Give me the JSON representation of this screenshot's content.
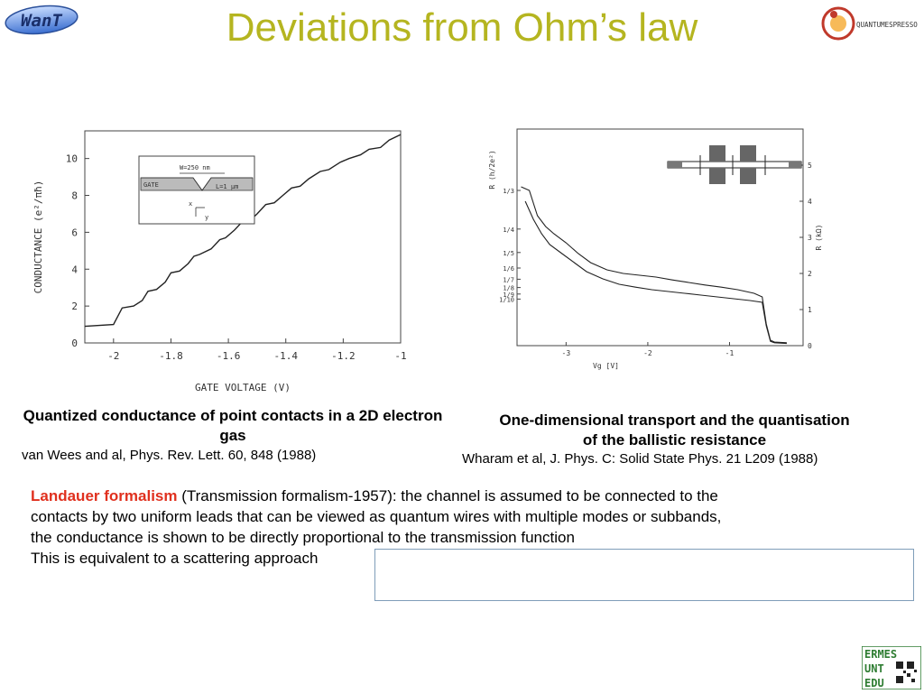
{
  "slide": {
    "title": "Deviations from Ohm’s law",
    "logo_left_text": "WanT",
    "logo_right_text": "QUANTUMESPRESSO",
    "footer_logo": {
      "line1": "ERMES",
      "line2": "UNT",
      "line3": "EDU"
    }
  },
  "left_figure": {
    "inset": {
      "w_label": "W=250 nm",
      "gate_label": "GATE",
      "l_label": "L=1 μm",
      "x_label": "x",
      "y_label": "y"
    },
    "caption_title": "Quantized conductance of point contacts in a 2D electron gas",
    "caption_ref": "van Wees and al, Phys. Rev. Lett. 60, 848 (1988)"
  },
  "right_figure": {
    "caption_title_line1": "One-dimensional transport and the quantisation",
    "caption_title_line2": "of the ballistic resistance",
    "caption_ref": "Wharam et al, J. Phys. C: Solid State Phys. 21 L209  (1988)"
  },
  "chart_data": [
    {
      "type": "line",
      "xlabel": "GATE VOLTAGE   (V)",
      "ylabel": "CONDUCTANCE   (e²/πħ)",
      "xlim": [
        -2.1,
        -1.0
      ],
      "ylim": [
        0,
        11.5
      ],
      "x_ticks": [
        -2.0,
        -1.8,
        -1.6,
        -1.4,
        -1.2,
        -1.0
      ],
      "x_tick_labels": [
        "-2",
        "-1.8",
        "-1.6",
        "-1.4",
        "-1.2",
        "-1"
      ],
      "y_ticks": [
        0,
        2,
        4,
        6,
        8,
        10
      ],
      "y_tick_labels": [
        "0",
        "2",
        "4",
        "6",
        "8",
        "10"
      ],
      "series": [
        {
          "x": [
            -2.1,
            -2.0,
            -1.99,
            -1.97,
            -1.93,
            -1.9,
            -1.88,
            -1.85,
            -1.82,
            -1.8,
            -1.77,
            -1.74,
            -1.72,
            -1.7,
            -1.66,
            -1.63,
            -1.61,
            -1.58,
            -1.55,
            -1.52,
            -1.5,
            -1.47,
            -1.44,
            -1.41,
            -1.38,
            -1.35,
            -1.32,
            -1.28,
            -1.25,
            -1.21,
            -1.18,
            -1.14,
            -1.11,
            -1.07,
            -1.04,
            -1.0
          ],
          "y": [
            0.9,
            1.0,
            1.3,
            1.9,
            2.0,
            2.3,
            2.8,
            2.9,
            3.3,
            3.8,
            3.9,
            4.3,
            4.7,
            4.8,
            5.1,
            5.6,
            5.7,
            6.1,
            6.6,
            6.7,
            7.0,
            7.5,
            7.6,
            8.0,
            8.4,
            8.5,
            8.9,
            9.3,
            9.4,
            9.8,
            10.0,
            10.2,
            10.5,
            10.6,
            11.0,
            11.3
          ]
        }
      ]
    },
    {
      "type": "line",
      "xlabel": "Vg [V]",
      "ylabel": "R (h/2e²)",
      "ylabel_right": "R (kΩ)",
      "xlim": [
        -3.6,
        -0.1
      ],
      "ylim": [
        0,
        6
      ],
      "x_ticks": [
        -3,
        -2,
        -1
      ],
      "x_tick_labels": [
        "-3",
        "-2",
        "-1"
      ],
      "y_right_ticks": [
        0,
        1,
        2,
        3,
        4,
        5
      ],
      "y_right_tick_labels": [
        "0",
        "1",
        "2",
        "3",
        "4",
        "5"
      ],
      "y_left_tick_labels": [
        "1/3",
        "1/4",
        "1/5",
        "1/6",
        "1/7",
        "1/8",
        "1/9",
        "1/10"
      ],
      "y_left_tick_values": [
        4.3,
        3.23,
        2.58,
        2.15,
        1.84,
        1.61,
        1.43,
        1.29
      ],
      "series": [
        {
          "x": [
            -3.55,
            -3.45,
            -3.35,
            -3.25,
            -3.15,
            -3.0,
            -2.85,
            -2.7,
            -2.5,
            -2.3,
            -2.1,
            -1.9,
            -1.7,
            -1.5,
            -1.3,
            -1.1,
            -0.9,
            -0.7,
            -0.6,
            -0.55,
            -0.5,
            -0.45,
            -0.3
          ],
          "y": [
            4.4,
            4.3,
            3.6,
            3.3,
            3.1,
            2.85,
            2.55,
            2.3,
            2.1,
            2.0,
            1.95,
            1.9,
            1.82,
            1.75,
            1.68,
            1.62,
            1.55,
            1.45,
            1.35,
            0.6,
            0.15,
            0.1,
            0.08
          ]
        },
        {
          "x": [
            -3.5,
            -3.4,
            -3.3,
            -3.2,
            -3.05,
            -2.9,
            -2.75,
            -2.55,
            -2.35,
            -2.15,
            -1.95,
            -1.75,
            -1.55,
            -1.35,
            -1.15,
            -0.95,
            -0.75,
            -0.6,
            -0.55,
            -0.5,
            -0.45,
            -0.3
          ],
          "y": [
            4.0,
            3.5,
            3.1,
            2.8,
            2.55,
            2.3,
            2.05,
            1.85,
            1.7,
            1.62,
            1.55,
            1.5,
            1.45,
            1.4,
            1.35,
            1.3,
            1.25,
            1.2,
            0.55,
            0.12,
            0.08,
            0.06
          ]
        }
      ]
    }
  ],
  "body": {
    "hl": "Landauer formalism",
    "line1_rest": " (Transmission formalism-1957): the channel is assumed to be connected to the",
    "line2": "contacts by two uniform leads that can be viewed as quantum wires with multiple modes or subbands,",
    "line3": "the conductance is shown to be directly proportional to the transmission function",
    "line4": "This is equivalent to a scattering approach"
  }
}
